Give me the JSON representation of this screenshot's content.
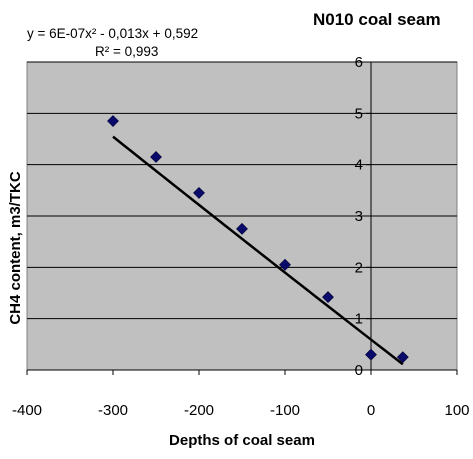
{
  "chart_data": {
    "type": "scatter",
    "title": "N010 coal seam",
    "xlabel": "Depths of coal seam",
    "ylabel": "CH4 content, m3/TKC",
    "xlim": [
      -400,
      100
    ],
    "ylim": [
      0,
      6
    ],
    "x_ticks": [
      "-400",
      "-300",
      "-200",
      "-100",
      "0",
      "100"
    ],
    "y_ticks": [
      "0",
      "1",
      "2",
      "3",
      "4",
      "5",
      "6"
    ],
    "grid": "horizontal",
    "background": "#c0c0c0",
    "series": [
      {
        "points": [
          {
            "x": -300,
            "y": 4.85
          },
          {
            "x": -250,
            "y": 4.15
          },
          {
            "x": -200,
            "y": 3.45
          },
          {
            "x": -150,
            "y": 2.75
          },
          {
            "x": -100,
            "y": 2.05
          },
          {
            "x": -50,
            "y": 1.42
          },
          {
            "x": 0,
            "y": 0.3
          },
          {
            "x": 37,
            "y": 0.25
          }
        ],
        "marker": "diamond",
        "color": "#0a0a6b"
      }
    ],
    "trendline": {
      "type": "polynomial",
      "equation": "y = 6E-07x² - 0,013x + 0,592",
      "r2_label": "R² = 0,993",
      "coefficients": {
        "a": 6e-07,
        "b": -0.013,
        "c": 0.592
      },
      "x_range": [
        -300,
        37
      ],
      "color": "#000000"
    }
  }
}
